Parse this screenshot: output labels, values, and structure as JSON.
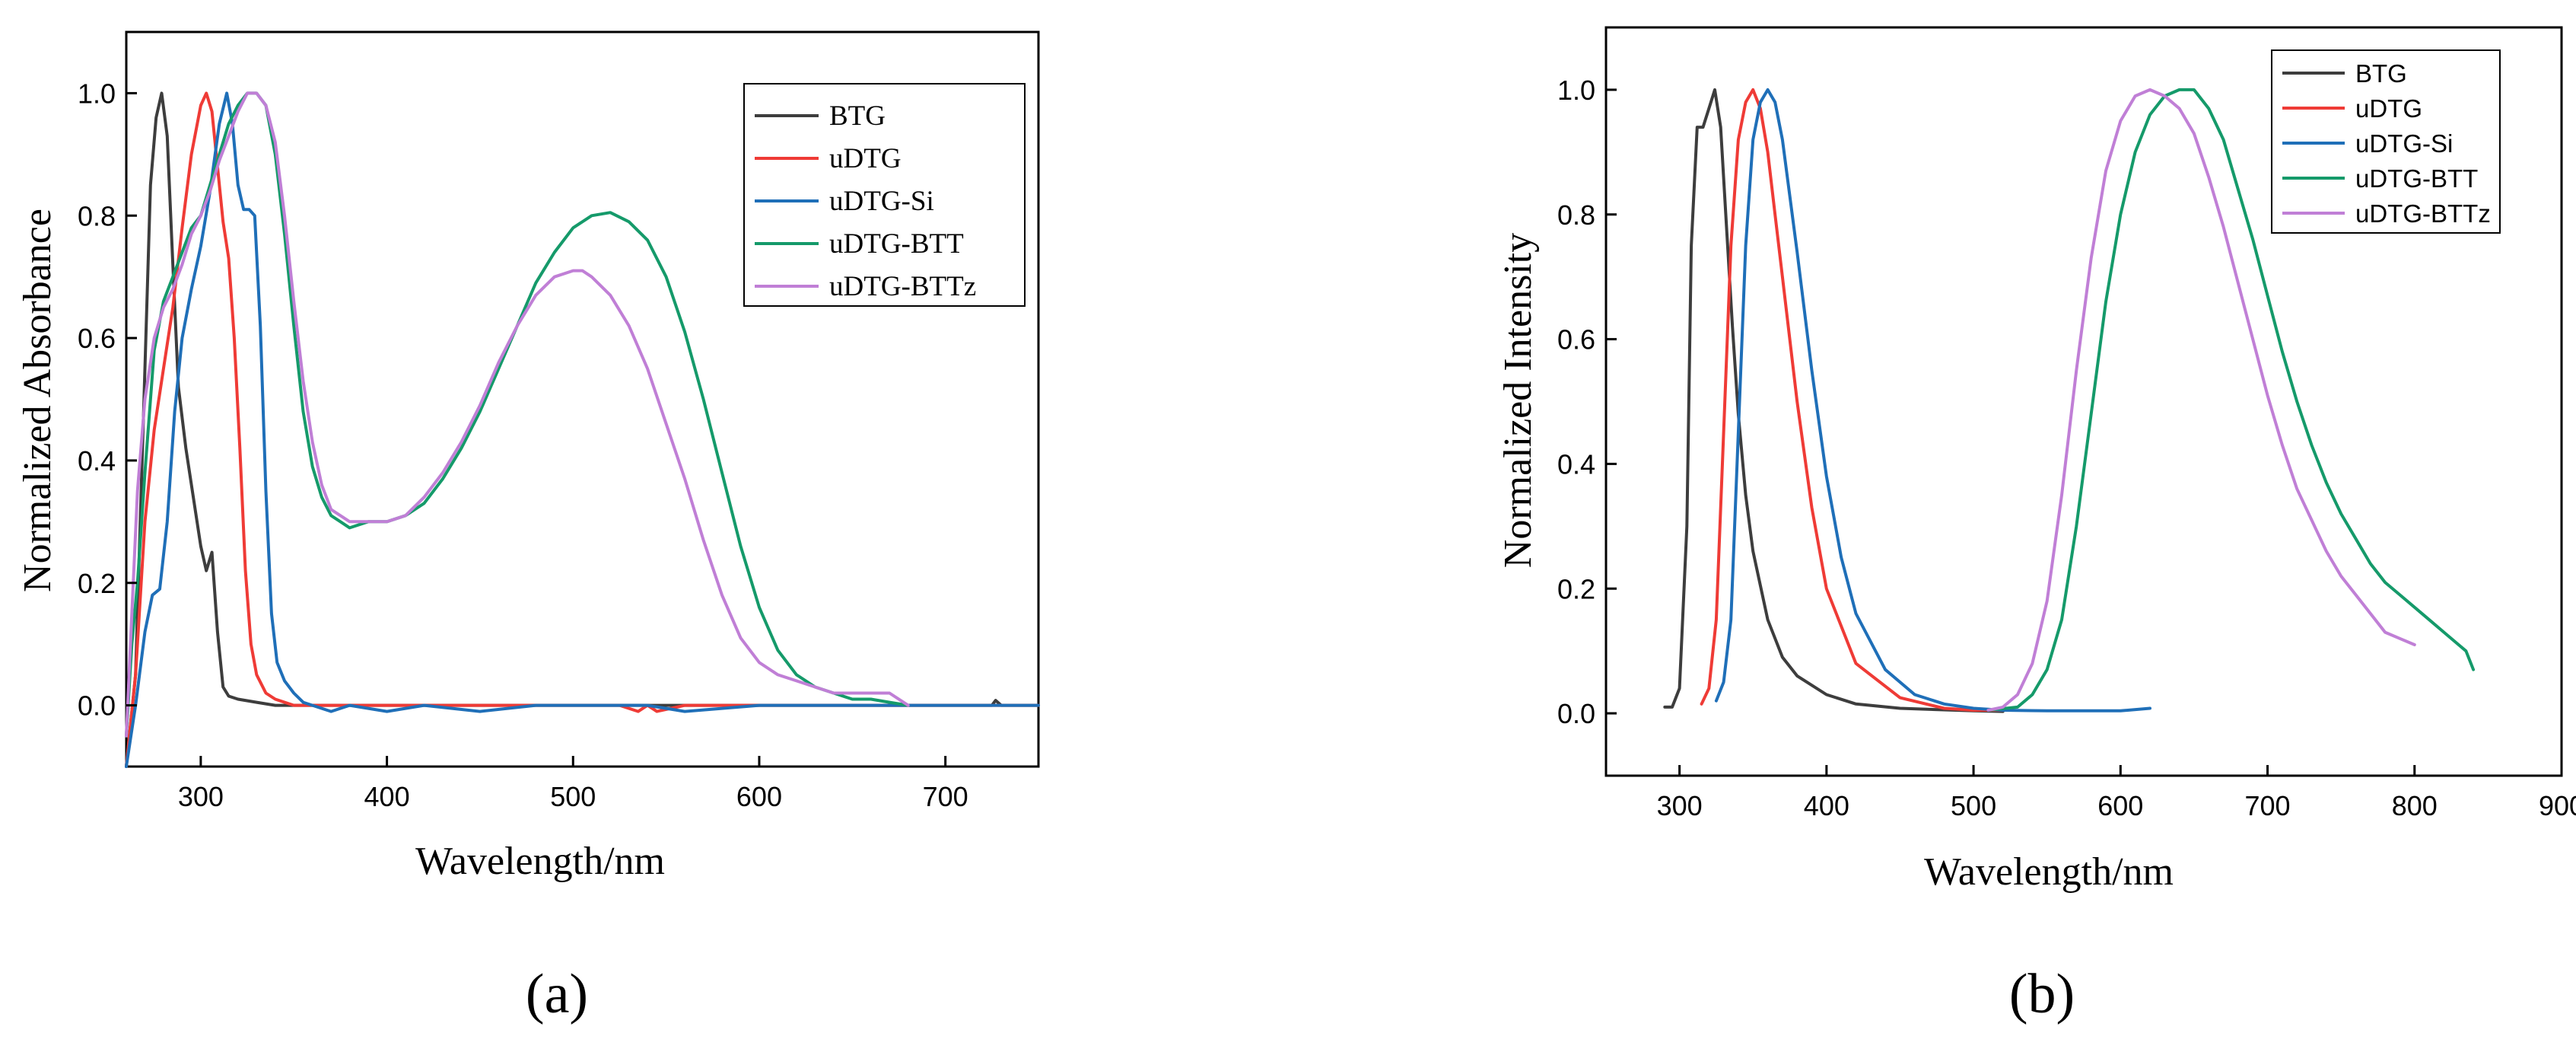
{
  "chart_data": [
    {
      "type": "line",
      "panel_label": "(a)",
      "xlabel": "Wavelength/nm",
      "ylabel": "Normalized Absorbance",
      "xlim": [
        260,
        750
      ],
      "ylim": [
        -0.1,
        1.1
      ],
      "xticks": [
        300,
        400,
        500,
        600,
        700
      ],
      "xtick_labels": [
        "300",
        "400",
        "500",
        "600",
        "700"
      ],
      "yticks": [
        0.0,
        0.2,
        0.4,
        0.6,
        0.8,
        1.0
      ],
      "ytick_labels": [
        "0.0",
        "0.2",
        "0.4",
        "0.6",
        "0.8",
        "1.0"
      ],
      "legend_position": "top-right",
      "series": [
        {
          "name": "BTG",
          "color": "#3d3d3d",
          "x": [
            260,
            265,
            270,
            273,
            276,
            279,
            282,
            285,
            288,
            292,
            296,
            300,
            303,
            306,
            309,
            312,
            315,
            320,
            330,
            340,
            360,
            400,
            500,
            600,
            700,
            725,
            727,
            730,
            750
          ],
          "y": [
            -0.1,
            0.05,
            0.55,
            0.85,
            0.96,
            1.0,
            0.93,
            0.72,
            0.52,
            0.42,
            0.34,
            0.26,
            0.22,
            0.25,
            0.12,
            0.03,
            0.015,
            0.01,
            0.005,
            0.0,
            0.0,
            0.0,
            0.0,
            0.0,
            0.0,
            0.0,
            0.008,
            0.0,
            0.0
          ]
        },
        {
          "name": "uDTG",
          "color": "#ef3b36",
          "x": [
            260,
            265,
            270,
            275,
            280,
            285,
            290,
            295,
            300,
            303,
            306,
            309,
            312,
            315,
            318,
            321,
            324,
            327,
            330,
            335,
            340,
            350,
            400,
            520,
            525,
            535,
            540,
            545,
            560,
            600,
            700,
            750
          ],
          "y": [
            -0.1,
            0.05,
            0.3,
            0.45,
            0.55,
            0.65,
            0.78,
            0.9,
            0.98,
            1.0,
            0.97,
            0.88,
            0.79,
            0.73,
            0.6,
            0.42,
            0.22,
            0.1,
            0.05,
            0.02,
            0.01,
            0.0,
            0.0,
            0.0,
            0.0,
            -0.01,
            0.0,
            -0.01,
            0.0,
            0.0,
            0.0,
            0.0
          ]
        },
        {
          "name": "uDTG-Si",
          "color": "#1f6fb8",
          "x": [
            260,
            265,
            270,
            274,
            278,
            282,
            286,
            290,
            295,
            300,
            305,
            310,
            314,
            317,
            320,
            323,
            326,
            329,
            332,
            335,
            338,
            341,
            345,
            350,
            355,
            360,
            370,
            380,
            400,
            420,
            450,
            480,
            500,
            540,
            560,
            600,
            700,
            750
          ],
          "y": [
            -0.1,
            0.0,
            0.12,
            0.18,
            0.19,
            0.3,
            0.48,
            0.6,
            0.68,
            0.75,
            0.84,
            0.95,
            1.0,
            0.95,
            0.85,
            0.81,
            0.81,
            0.8,
            0.62,
            0.35,
            0.15,
            0.07,
            0.04,
            0.02,
            0.005,
            0.0,
            -0.01,
            0.0,
            -0.01,
            0.0,
            -0.01,
            0.0,
            0.0,
            0.0,
            -0.01,
            0.0,
            0.0,
            0.0
          ]
        },
        {
          "name": "uDTG-BTT",
          "color": "#159a6a",
          "x": [
            260,
            263,
            266,
            270,
            275,
            280,
            285,
            290,
            295,
            300,
            305,
            310,
            315,
            320,
            325,
            330,
            335,
            340,
            345,
            350,
            355,
            360,
            365,
            370,
            375,
            380,
            390,
            400,
            410,
            420,
            430,
            440,
            450,
            460,
            470,
            480,
            490,
            500,
            510,
            520,
            530,
            540,
            550,
            560,
            570,
            580,
            590,
            600,
            610,
            620,
            630,
            640,
            650,
            660,
            670,
            680
          ],
          "y": [
            -0.05,
            0.1,
            0.2,
            0.38,
            0.58,
            0.66,
            0.7,
            0.74,
            0.78,
            0.8,
            0.85,
            0.9,
            0.95,
            0.98,
            1.0,
            1.0,
            0.98,
            0.9,
            0.77,
            0.62,
            0.48,
            0.39,
            0.34,
            0.31,
            0.3,
            0.29,
            0.3,
            0.3,
            0.31,
            0.33,
            0.37,
            0.42,
            0.48,
            0.55,
            0.62,
            0.69,
            0.74,
            0.78,
            0.8,
            0.805,
            0.79,
            0.76,
            0.7,
            0.61,
            0.5,
            0.38,
            0.26,
            0.16,
            0.09,
            0.05,
            0.03,
            0.02,
            0.01,
            0.01,
            0.005,
            0.0
          ]
        },
        {
          "name": "uDTG-BTTz",
          "color": "#c07fd6",
          "x": [
            260,
            263,
            266,
            270,
            275,
            280,
            285,
            290,
            295,
            300,
            305,
            310,
            315,
            320,
            325,
            330,
            335,
            340,
            345,
            350,
            355,
            360,
            365,
            370,
            375,
            380,
            390,
            400,
            410,
            420,
            430,
            440,
            450,
            460,
            470,
            480,
            490,
            500,
            505,
            510,
            520,
            530,
            540,
            550,
            560,
            570,
            580,
            590,
            600,
            610,
            620,
            630,
            640,
            650,
            660,
            670,
            680
          ],
          "y": [
            -0.05,
            0.15,
            0.35,
            0.5,
            0.6,
            0.65,
            0.68,
            0.72,
            0.77,
            0.8,
            0.84,
            0.89,
            0.93,
            0.97,
            1.0,
            1.0,
            0.98,
            0.92,
            0.8,
            0.66,
            0.53,
            0.43,
            0.36,
            0.32,
            0.31,
            0.3,
            0.3,
            0.3,
            0.31,
            0.34,
            0.38,
            0.43,
            0.49,
            0.56,
            0.62,
            0.67,
            0.7,
            0.71,
            0.71,
            0.7,
            0.67,
            0.62,
            0.55,
            0.46,
            0.37,
            0.27,
            0.18,
            0.11,
            0.07,
            0.05,
            0.04,
            0.03,
            0.02,
            0.02,
            0.02,
            0.02,
            0.0
          ]
        }
      ]
    },
    {
      "type": "line",
      "panel_label": "(b)",
      "xlabel": "Wavelength/nm",
      "ylabel": "Normalized Intensity",
      "xlim": [
        250,
        900
      ],
      "ylim": [
        -0.1,
        1.1
      ],
      "xticks": [
        300,
        400,
        500,
        600,
        700,
        800,
        900
      ],
      "xtick_labels": [
        "300",
        "400",
        "500",
        "600",
        "700",
        "800",
        "900"
      ],
      "yticks": [
        0.0,
        0.2,
        0.4,
        0.6,
        0.8,
        1.0
      ],
      "ytick_labels": [
        "0.0",
        "0.2",
        "0.4",
        "0.6",
        "0.8",
        "1.0"
      ],
      "legend_position": "top-right",
      "series": [
        {
          "name": "BTG",
          "color": "#3d3d3d",
          "x": [
            290,
            295,
            300,
            305,
            308,
            312,
            316,
            320,
            324,
            328,
            332,
            336,
            340,
            345,
            350,
            360,
            370,
            380,
            400,
            420,
            450,
            500,
            520
          ],
          "y": [
            0.01,
            0.01,
            0.04,
            0.3,
            0.75,
            0.94,
            0.94,
            0.97,
            1.0,
            0.94,
            0.78,
            0.62,
            0.48,
            0.35,
            0.26,
            0.15,
            0.09,
            0.06,
            0.03,
            0.015,
            0.008,
            0.004,
            0.003
          ]
        },
        {
          "name": "uDTG",
          "color": "#ef3b36",
          "x": [
            315,
            320,
            325,
            330,
            335,
            340,
            345,
            350,
            355,
            360,
            365,
            370,
            380,
            390,
            400,
            420,
            450,
            480,
            500,
            520
          ],
          "y": [
            0.015,
            0.04,
            0.15,
            0.45,
            0.75,
            0.92,
            0.98,
            1.0,
            0.97,
            0.9,
            0.8,
            0.7,
            0.5,
            0.33,
            0.2,
            0.08,
            0.025,
            0.008,
            0.005,
            0.005
          ]
        },
        {
          "name": "uDTG-Si",
          "color": "#1f6fb8",
          "x": [
            325,
            330,
            335,
            340,
            345,
            350,
            355,
            360,
            365,
            370,
            380,
            390,
            400,
            410,
            420,
            440,
            460,
            480,
            500,
            520,
            550,
            600,
            620
          ],
          "y": [
            0.02,
            0.05,
            0.15,
            0.45,
            0.75,
            0.92,
            0.98,
            1.0,
            0.98,
            0.92,
            0.74,
            0.55,
            0.38,
            0.25,
            0.16,
            0.07,
            0.03,
            0.015,
            0.008,
            0.005,
            0.004,
            0.004,
            0.008
          ]
        },
        {
          "name": "uDTG-BTT",
          "color": "#159a6a",
          "x": [
            510,
            530,
            540,
            550,
            560,
            570,
            580,
            590,
            600,
            610,
            620,
            630,
            640,
            650,
            660,
            670,
            680,
            690,
            700,
            710,
            720,
            730,
            740,
            750,
            760,
            770,
            780,
            790,
            800,
            810,
            820,
            830,
            835,
            840
          ],
          "y": [
            0.005,
            0.01,
            0.03,
            0.07,
            0.15,
            0.3,
            0.48,
            0.66,
            0.8,
            0.9,
            0.96,
            0.99,
            1.0,
            1.0,
            0.97,
            0.92,
            0.84,
            0.76,
            0.67,
            0.58,
            0.5,
            0.43,
            0.37,
            0.32,
            0.28,
            0.24,
            0.21,
            0.19,
            0.17,
            0.15,
            0.13,
            0.11,
            0.1,
            0.07
          ]
        },
        {
          "name": "uDTG-BTTz",
          "color": "#c07fd6",
          "x": [
            510,
            520,
            530,
            540,
            550,
            560,
            570,
            580,
            590,
            600,
            610,
            620,
            630,
            640,
            650,
            660,
            670,
            680,
            690,
            700,
            710,
            720,
            730,
            740,
            750,
            760,
            770,
            780,
            790,
            800
          ],
          "y": [
            0.005,
            0.01,
            0.03,
            0.08,
            0.18,
            0.35,
            0.55,
            0.73,
            0.87,
            0.95,
            0.99,
            1.0,
            0.99,
            0.97,
            0.93,
            0.86,
            0.78,
            0.69,
            0.6,
            0.51,
            0.43,
            0.36,
            0.31,
            0.26,
            0.22,
            0.19,
            0.16,
            0.13,
            0.12,
            0.11
          ]
        }
      ]
    }
  ]
}
